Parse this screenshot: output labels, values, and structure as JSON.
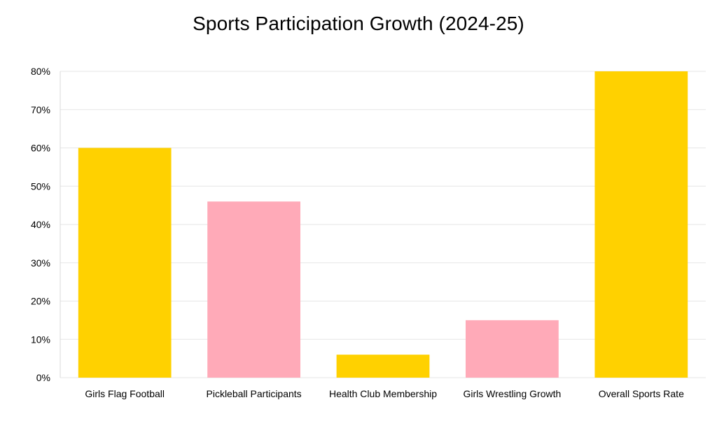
{
  "chart_data": {
    "type": "bar",
    "title": "Sports Participation Growth (2024-25)",
    "xlabel": "",
    "ylabel": "",
    "categories": [
      "Girls Flag Football",
      "Pickleball Participants",
      "Health Club Membership",
      "Girls Wrestling Growth",
      "Overall Sports Rate"
    ],
    "values": [
      60,
      46,
      6,
      15,
      80
    ],
    "bar_colors": [
      "#FFD100",
      "#FFAAB8",
      "#FFD100",
      "#FFAAB8",
      "#FFD100"
    ],
    "ylim": [
      0,
      80
    ],
    "yticks": [
      0,
      10,
      20,
      30,
      40,
      50,
      60,
      70,
      80
    ],
    "ytick_suffix": "%",
    "grid": true,
    "legend": "none"
  }
}
